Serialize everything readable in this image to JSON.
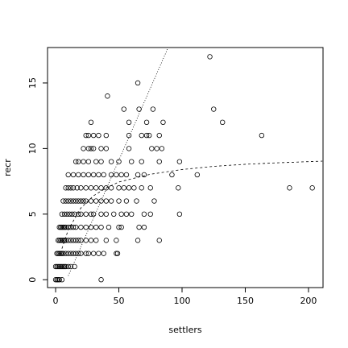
{
  "chart_data": {
    "type": "scatter",
    "x_label": "settlers",
    "y_label": "recr",
    "xlim": [
      -6.4,
      211.5
    ],
    "ylim": [
      -0.6,
      17.7
    ],
    "xticks": [
      0,
      50,
      100,
      150,
      200
    ],
    "yticks": [
      0,
      5,
      10,
      15
    ],
    "x": [
      0,
      1,
      2,
      3,
      5,
      36,
      0,
      1,
      2,
      3,
      4,
      5,
      6,
      7,
      8,
      10,
      12,
      15,
      1,
      2,
      3,
      4,
      5,
      6,
      8,
      10,
      12,
      14,
      16,
      18,
      20,
      24,
      26,
      30,
      34,
      38,
      48,
      49,
      2,
      3,
      4,
      5,
      6,
      7,
      8,
      10,
      12,
      14,
      16,
      18,
      20,
      24,
      28,
      32,
      40,
      48,
      65,
      82,
      3,
      4,
      5,
      6,
      7,
      8,
      10,
      12,
      14,
      16,
      20,
      24,
      28,
      32,
      36,
      42,
      50,
      52,
      66,
      70,
      5,
      7,
      9,
      11,
      13,
      15,
      18,
      20,
      24,
      28,
      30,
      36,
      40,
      46,
      52,
      56,
      60,
      70,
      75,
      98,
      6,
      8,
      10,
      12,
      14,
      16,
      18,
      20,
      22,
      24,
      28,
      32,
      36,
      40,
      44,
      50,
      56,
      64,
      78,
      8,
      10,
      12,
      14,
      17,
      20,
      24,
      28,
      32,
      36,
      40,
      44,
      50,
      54,
      58,
      62,
      68,
      75,
      97,
      185,
      203,
      10,
      14,
      18,
      22,
      26,
      30,
      34,
      38,
      44,
      48,
      52,
      56,
      65,
      70,
      92,
      112,
      16,
      18,
      22,
      26,
      32,
      36,
      44,
      50,
      60,
      68,
      82,
      98,
      22,
      26,
      28,
      30,
      36,
      40,
      58,
      76,
      80,
      84,
      24,
      26,
      30,
      34,
      40,
      58,
      68,
      72,
      74,
      82,
      163,
      28,
      58,
      72,
      85,
      132,
      54,
      66,
      77,
      125,
      41,
      65,
      122
    ],
    "values": [
      0,
      0,
      0,
      0,
      0,
      0,
      1,
      1,
      1,
      1,
      1,
      1,
      1,
      1,
      1,
      1,
      1,
      1,
      2,
      2,
      2,
      2,
      2,
      2,
      2,
      2,
      2,
      2,
      2,
      2,
      2,
      2,
      2,
      2,
      2,
      2,
      2,
      2,
      3,
      3,
      3,
      3,
      3,
      3,
      3,
      3,
      3,
      3,
      3,
      3,
      3,
      3,
      3,
      3,
      3,
      3,
      3,
      3,
      4,
      4,
      4,
      4,
      4,
      4,
      4,
      4,
      4,
      4,
      4,
      4,
      4,
      4,
      4,
      4,
      4,
      4,
      4,
      4,
      5,
      5,
      5,
      5,
      5,
      5,
      5,
      5,
      5,
      5,
      5,
      5,
      5,
      5,
      5,
      5,
      5,
      5,
      5,
      5,
      6,
      6,
      6,
      6,
      6,
      6,
      6,
      6,
      6,
      6,
      6,
      6,
      6,
      6,
      6,
      6,
      6,
      6,
      6,
      7,
      7,
      7,
      7,
      7,
      7,
      7,
      7,
      7,
      7,
      7,
      7,
      7,
      7,
      7,
      7,
      7,
      7,
      7,
      7,
      7,
      8,
      8,
      8,
      8,
      8,
      8,
      8,
      8,
      8,
      8,
      8,
      8,
      8,
      8,
      8,
      8,
      9,
      9,
      9,
      9,
      9,
      9,
      9,
      9,
      9,
      9,
      9,
      9,
      10,
      10,
      10,
      10,
      10,
      10,
      10,
      10,
      10,
      10,
      11,
      11,
      11,
      11,
      11,
      11,
      11,
      11,
      11,
      11,
      11,
      12,
      12,
      12,
      12,
      12,
      13,
      13,
      13,
      13,
      14,
      15,
      17
    ],
    "lines": [
      {
        "style": "dotted",
        "x": [
          10,
          89
        ],
        "values": [
          0.3,
          17.7
        ]
      },
      {
        "style": "dashed",
        "x": [
          5,
          10,
          20,
          30,
          40,
          50,
          75,
          100,
          125,
          150,
          175,
          200,
          211
        ],
        "values": [
          2.37,
          3.81,
          5.47,
          6.4,
          6.99,
          7.45,
          8.04,
          8.4,
          8.64,
          8.8,
          8.91,
          9.0,
          9.04
        ]
      }
    ]
  }
}
